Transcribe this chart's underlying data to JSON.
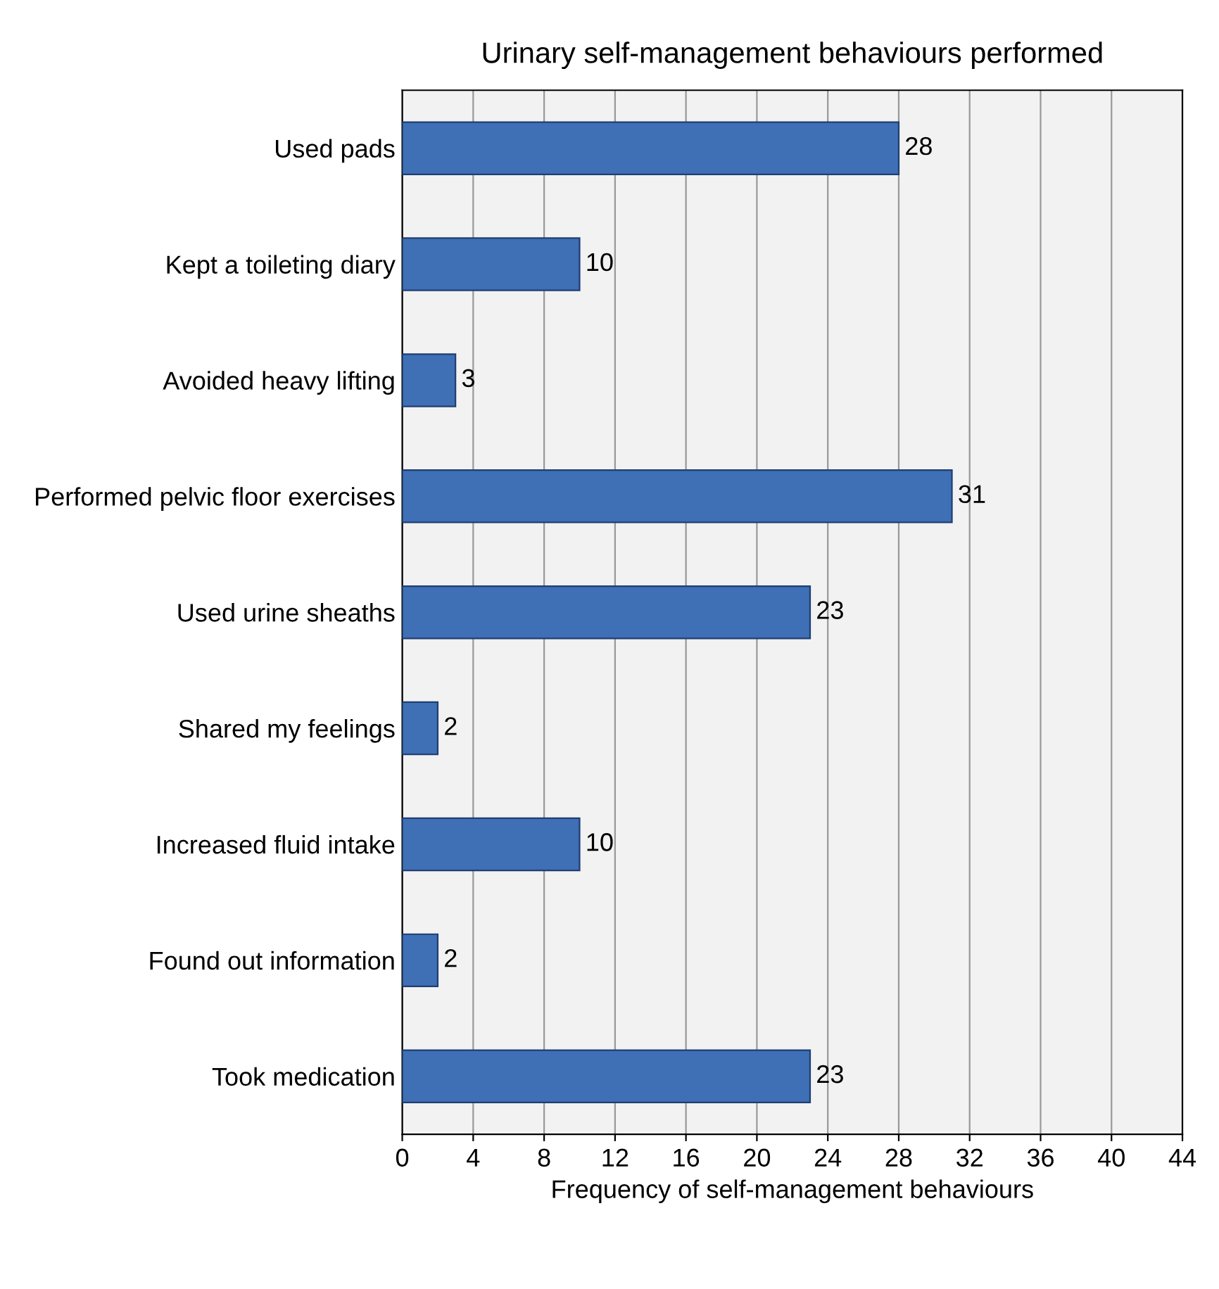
{
  "chart_data": {
    "type": "bar",
    "orientation": "horizontal",
    "title": "Urinary self-management behaviours performed",
    "xlabel": "Frequency of self-management behaviours",
    "categories": [
      "Used pads",
      "Kept a toileting diary",
      "Avoided heavy lifting",
      "Performed pelvic floor exercises",
      "Used urine sheaths",
      "Shared my feelings",
      "Increased fluid intake",
      "Found out information",
      "Took medication"
    ],
    "values": [
      28,
      10,
      3,
      31,
      23,
      2,
      10,
      2,
      23
    ],
    "color": "#3f6fb5",
    "xlim": [
      0,
      44
    ],
    "xticks": [
      0,
      4,
      8,
      12,
      16,
      20,
      24,
      28,
      32,
      36,
      40,
      44
    ],
    "grid": "x",
    "data_labels": true
  }
}
